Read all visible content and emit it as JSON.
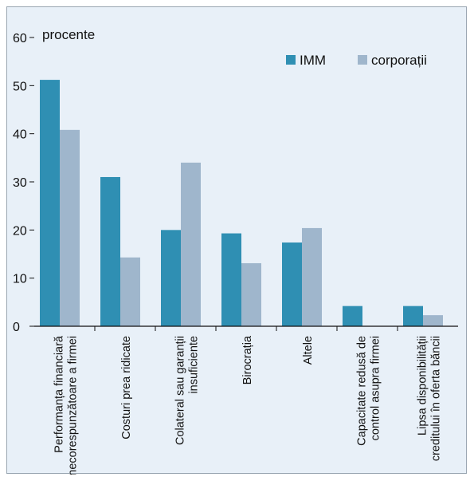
{
  "chart_data": {
    "type": "bar",
    "ylabel": "procente",
    "ylim": [
      0,
      60
    ],
    "yticks": [
      0,
      10,
      20,
      30,
      40,
      50,
      60
    ],
    "legend_position": "top-right",
    "categories": [
      [
        "Performanța financiară",
        "necorespunzătoare a firmei"
      ],
      [
        "Costuri prea ridicate"
      ],
      [
        "Colateral sau garanții",
        "insuficiente"
      ],
      [
        "Birocrația"
      ],
      [
        "Altele"
      ],
      [
        "Capacitate redusă de",
        "control asupra firmei"
      ],
      [
        "Lipsa disponibilității",
        "creditului în oferta băncii"
      ]
    ],
    "series": [
      {
        "name": "IMM",
        "color": "#2f8fb3",
        "values": [
          51.2,
          31.0,
          20.0,
          19.3,
          17.4,
          4.2,
          4.2
        ]
      },
      {
        "name": "corporații",
        "color": "#9fb6cc",
        "values": [
          40.8,
          14.3,
          34.0,
          13.1,
          20.4,
          0,
          2.3
        ]
      }
    ]
  }
}
